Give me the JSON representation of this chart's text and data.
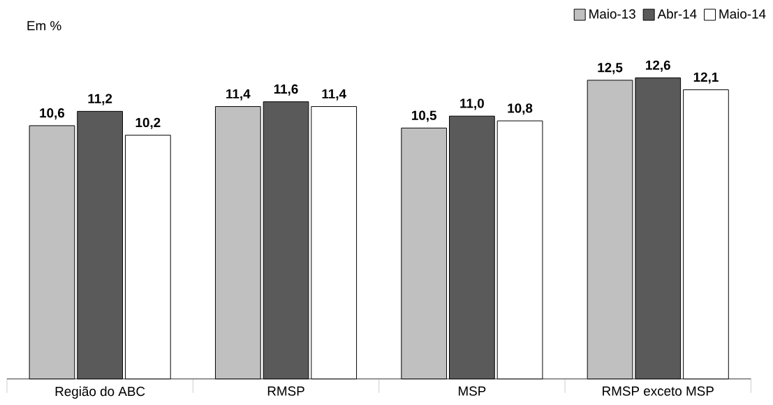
{
  "chart_data": {
    "type": "bar",
    "ylabel": "Em %",
    "categories": [
      "Região do ABC",
      "RMSP",
      "MSP",
      "RMSP exceto MSP"
    ],
    "series": [
      {
        "name": "Maio-13",
        "color": "#c0c0c0",
        "values": [
          10.6,
          11.4,
          10.5,
          12.5
        ],
        "value_labels": [
          "10,6",
          "11,4",
          "10,5",
          "12,5"
        ]
      },
      {
        "name": "Abr-14",
        "color": "#5a5a5a",
        "values": [
          11.2,
          11.6,
          11.0,
          12.6
        ],
        "value_labels": [
          "11,2",
          "11,6",
          "11,0",
          "12,6"
        ]
      },
      {
        "name": "Maio-14",
        "color": "#ffffff",
        "values": [
          10.2,
          11.4,
          10.8,
          12.1
        ],
        "value_labels": [
          "10,2",
          "11,4",
          "10,8",
          "12,1"
        ]
      }
    ],
    "legend": "top right"
  }
}
